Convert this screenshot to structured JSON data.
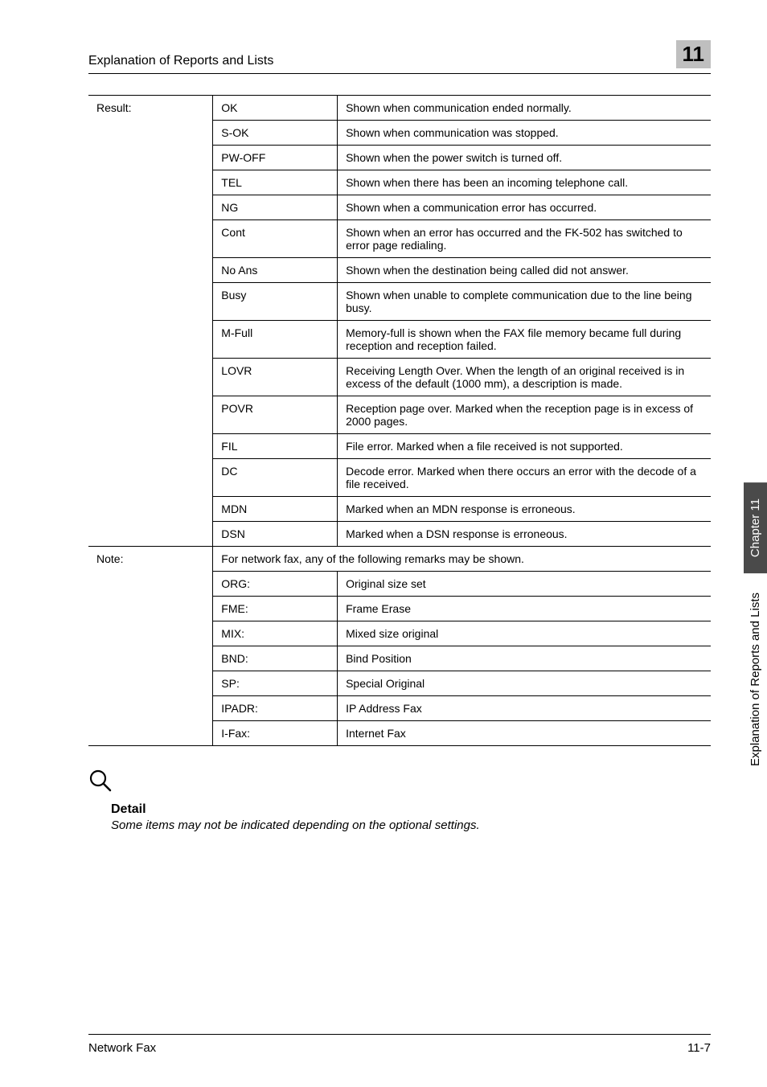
{
  "header": {
    "title": "Explanation of Reports and Lists",
    "badge": "11"
  },
  "table": {
    "label_result": "Result:",
    "label_note": "Note:",
    "note_span": "For network fax, any of the following remarks may be shown.",
    "result_rows": [
      {
        "code": "OK",
        "desc": "Shown when communication ended normally."
      },
      {
        "code": "S-OK",
        "desc": "Shown when communication was stopped."
      },
      {
        "code": "PW-OFF",
        "desc": "Shown when the power switch is turned off."
      },
      {
        "code": "TEL",
        "desc": "Shown when there has been an incoming telephone call."
      },
      {
        "code": "NG",
        "desc": "Shown when a communication error has occurred."
      },
      {
        "code": "Cont",
        "desc": "Shown when an error has occurred and the FK-502 has switched to error page redialing."
      },
      {
        "code": "No Ans",
        "desc": "Shown when the destination being called did not answer."
      },
      {
        "code": "Busy",
        "desc": "Shown when unable to complete communication due to the line being busy."
      },
      {
        "code": "M-Full",
        "desc": "Memory-full is shown when the FAX file memory became full during reception and reception failed."
      },
      {
        "code": "LOVR",
        "desc": "Receiving Length Over. When the length of an original received is in excess of the default (1000 mm), a description is made."
      },
      {
        "code": "POVR",
        "desc": "Reception page over. Marked when the reception page is in excess of 2000 pages."
      },
      {
        "code": "FIL",
        "desc": "File error. Marked when a file received is not supported."
      },
      {
        "code": "DC",
        "desc": "Decode error. Marked when there occurs an error with the decode of a file received."
      },
      {
        "code": "MDN",
        "desc": "Marked when an MDN response is erroneous."
      },
      {
        "code": "DSN",
        "desc": "Marked when a DSN response is erroneous."
      }
    ],
    "note_rows": [
      {
        "code": "ORG:",
        "desc": "Original size set"
      },
      {
        "code": "FME:",
        "desc": "Frame Erase"
      },
      {
        "code": "MIX:",
        "desc": "Mixed size original"
      },
      {
        "code": "BND:",
        "desc": "Bind Position"
      },
      {
        "code": "SP:",
        "desc": "Special Original"
      },
      {
        "code": "IPADR:",
        "desc": "IP Address Fax"
      },
      {
        "code": "I-Fax:",
        "desc": "Internet Fax"
      }
    ]
  },
  "detail": {
    "title": "Detail",
    "text": "Some items may not be indicated depending on the optional settings."
  },
  "sidebar": {
    "dark": "Chapter 11",
    "light": "Explanation of Reports and Lists"
  },
  "footer": {
    "left": "Network Fax",
    "right": "11-7"
  }
}
